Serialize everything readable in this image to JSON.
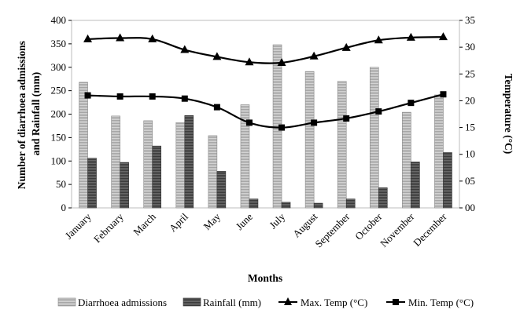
{
  "chart_data": {
    "type": "bar",
    "categories": [
      "January",
      "February",
      "March",
      "April",
      "May",
      "June",
      "July",
      "August",
      "September",
      "October",
      "November",
      "December"
    ],
    "series": [
      {
        "name": "Diarrhoea admissions",
        "type": "bar",
        "axis": "left",
        "values": [
          268,
          196,
          186,
          182,
          154,
          220,
          348,
          291,
          270,
          300,
          204,
          241
        ],
        "color": "#c8c8c8"
      },
      {
        "name": "Rainfall (mm)",
        "type": "bar",
        "axis": "left",
        "values": [
          106,
          97,
          132,
          197,
          78,
          19,
          12,
          10,
          19,
          43,
          98,
          118
        ],
        "color": "#555555"
      },
      {
        "name": "Max. Temp (°C)",
        "type": "line",
        "axis": "right",
        "marker": "triangle",
        "values": [
          31.5,
          31.7,
          31.5,
          29.5,
          28.2,
          27.2,
          27.1,
          28.3,
          29.9,
          31.3,
          31.8,
          31.9
        ],
        "color": "#000000"
      },
      {
        "name": "Min. Temp (°C)",
        "type": "line",
        "axis": "right",
        "marker": "square",
        "values": [
          21.0,
          20.8,
          20.8,
          20.4,
          18.8,
          15.9,
          15.0,
          15.9,
          16.7,
          18.0,
          19.6,
          21.2
        ],
        "color": "#000000"
      }
    ],
    "xlabel": "Months",
    "ylabel": "Number of diarrhoea admissions and Rainfall (mm)",
    "ylabel_lines": [
      "Number of diarrhoea admissions",
      "and Rainfall (mm)"
    ],
    "y2label": "Temperature (°C)",
    "ylim": [
      0,
      400
    ],
    "y2lim": [
      0,
      35
    ],
    "yticks": [
      0,
      50,
      100,
      150,
      200,
      250,
      300,
      350,
      400
    ],
    "y2ticks": [
      "00",
      "05",
      "10",
      "15",
      "20",
      "25",
      "30",
      "35"
    ],
    "grid": false,
    "legend_position": "bottom"
  }
}
